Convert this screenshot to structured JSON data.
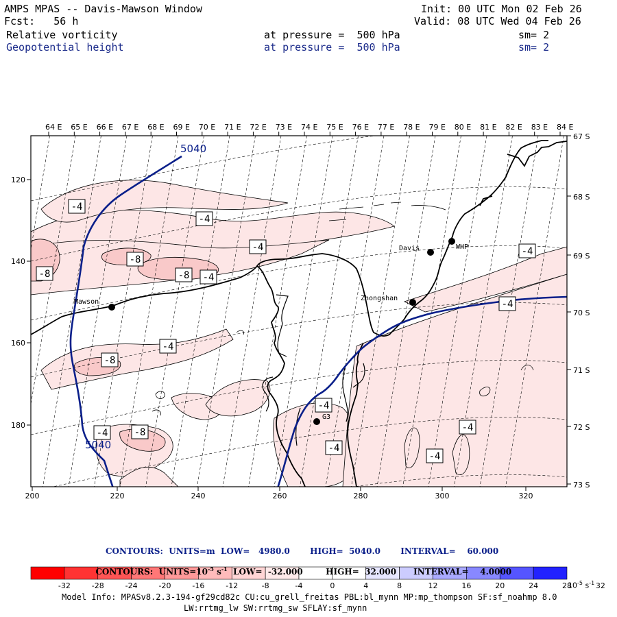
{
  "header": {
    "title": "AMPS MPAS -- Davis-Mawson Window",
    "init": "Init: 00 UTC Mon 02 Feb 26",
    "fcst": "Fcst:   56 h",
    "valid": "Valid: 08 UTC Wed 04 Feb 26",
    "field1": {
      "name": "Relative vorticity",
      "level": "at pressure =  500 hPa",
      "sm": "sm= 2"
    },
    "field2": {
      "name": "Geopotential height",
      "level": "at pressure =  500 hPa",
      "sm": "sm= 2"
    }
  },
  "axes": {
    "lon_labels": [
      "64 E",
      "65 E",
      "66 E",
      "67 E",
      "68 E",
      "69 E",
      "70 E",
      "71 E",
      "72 E",
      "73 E",
      "74 E",
      "75 E",
      "76 E",
      "77 E",
      "78 E",
      "79 E",
      "80 E",
      "81 E",
      "82 E",
      "83 E",
      "84 E"
    ],
    "lat_labels": [
      "67 S",
      "68 S",
      "69 S",
      "70 S",
      "71 S",
      "72 S",
      "73 S"
    ],
    "x_ticks": [
      "200",
      "220",
      "240",
      "260",
      "280",
      "300",
      "320"
    ],
    "y_ticks": [
      "120",
      "140",
      "160",
      "180"
    ]
  },
  "stations": [
    {
      "name": "Mawson"
    },
    {
      "name": "Davis"
    },
    {
      "name": "WHP"
    },
    {
      "name": "Zhongshan"
    },
    {
      "name": "G3"
    }
  ],
  "contour_labels": {
    "height": [
      "5040",
      "5040"
    ],
    "vorticity": [
      "-4",
      "-4",
      "-4",
      "-8",
      "-8",
      "-8",
      "-4",
      "-4",
      "-8",
      "-4",
      "-8",
      "-4",
      "-4",
      "-4",
      "-4",
      "-4",
      "-4",
      "-4"
    ]
  },
  "contours_info": {
    "line1": "CONTOURS:  UNITS=m  LOW=   4980.0       HIGH=  5040.0       INTERVAL=    60.000",
    "line2": "CONTOURS:  UNITS=10",
    "line2_exp": "-5",
    "line2_unit": " s",
    "line2_unit_exp": "-1",
    "line2_rest": "  LOW=  -32.000        HIGH=  32.000      INTERVAL=    4.0000"
  },
  "colorbar": {
    "labels": [
      "-32",
      "-28",
      "-24",
      "-20",
      "-16",
      "-12",
      "-8",
      "-4",
      "0",
      "4",
      "8",
      "12",
      "16",
      "20",
      "24",
      "28",
      "32"
    ],
    "unit": "10",
    "unit_exp": "-5",
    "unit_tail": " s",
    "unit_tail_exp": "-1",
    "colors": [
      "#ff0000",
      "#ff3333",
      "#ff5555",
      "#ff7777",
      "#ff9999",
      "#ffbbbb",
      "#ffd5d5",
      "#ffeaea",
      "#ffffff",
      "#ffffff",
      "#e6e6ff",
      "#ccccff",
      "#aaaaff",
      "#8888ff",
      "#5555ff",
      "#2222ff"
    ]
  },
  "model_info": {
    "line1": "Model Info: MPASv8.2.3-194-gf29cd82c CU:cu_grell_freitas PBL:bl_mynn MP:mp_thompson SF:sf_noahmp 8.0",
    "line2": "LW:rrtmg_lw SW:rrtmg_sw SFLAY:sf_mynn"
  }
}
